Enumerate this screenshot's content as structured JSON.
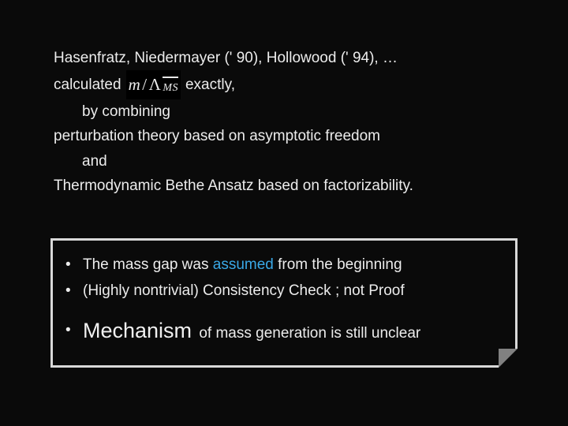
{
  "slide": {
    "line1": "Hasenfratz, Niedermayer (' 90), Hollowood (' 94), …",
    "calc_before": "calculated",
    "formula": {
      "m": "m",
      "slash": "/",
      "lambda": "Λ",
      "sub": "MS"
    },
    "calc_after": "exactly,",
    "line3": "by combining",
    "line4": "perturbation theory based on asymptotic freedom",
    "line5": "and",
    "line6": "Thermodynamic Bethe Ansatz based on factorizability."
  },
  "box": {
    "bullet": "•",
    "row1_a": "The mass gap was ",
    "row1_assumed": "assumed",
    "row1_b": " from the beginning",
    "row2": "(Highly nontrivial) Consistency Check ; not Proof",
    "row3_mech": "Mechanism",
    "row3_rest": " of mass generation is still unclear"
  },
  "colors": {
    "bg": "#0a0a0a",
    "text": "#ececec",
    "accent": "#3aa8e6",
    "border": "#d8d8d8"
  }
}
